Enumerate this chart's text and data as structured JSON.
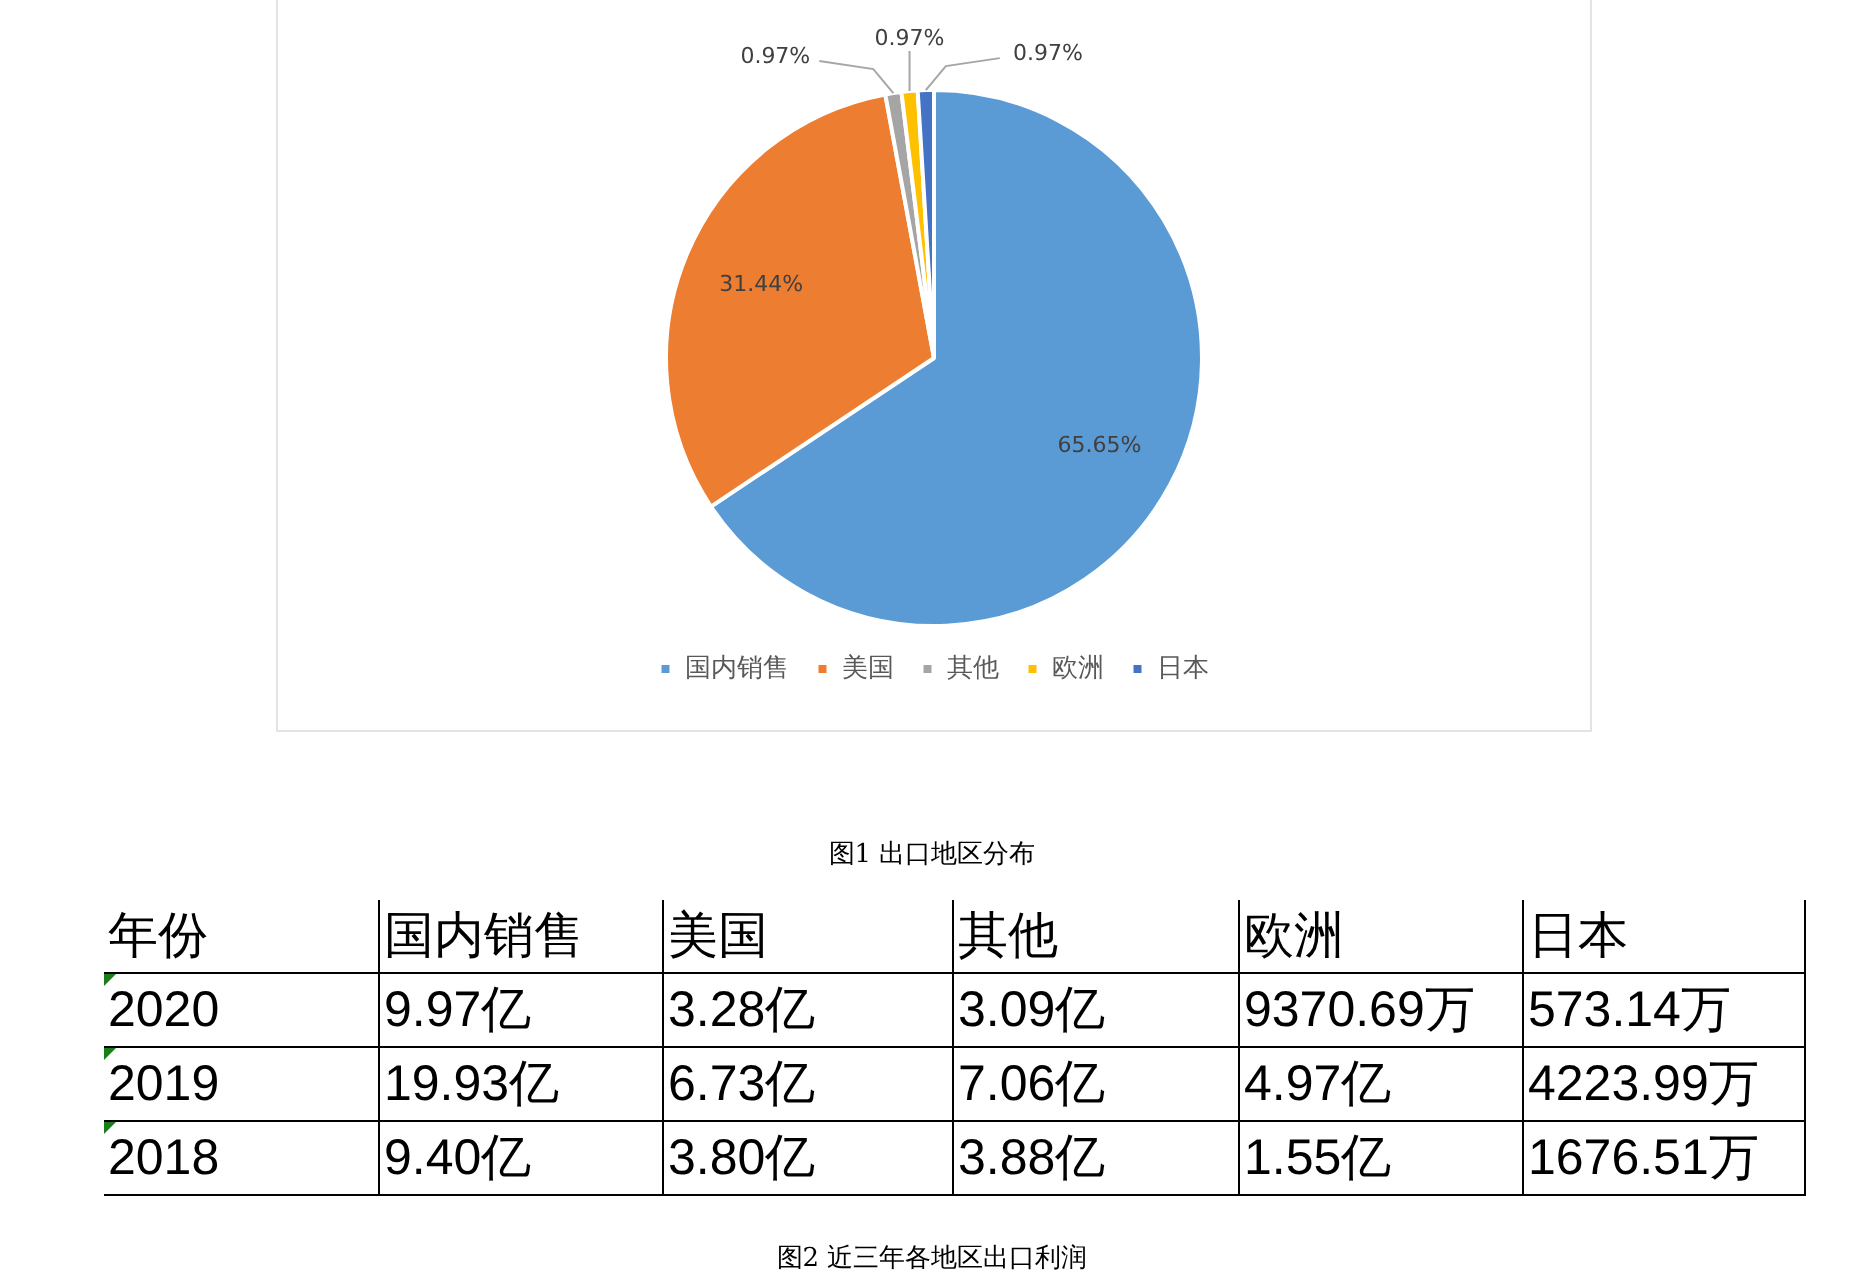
{
  "chart_data": [
    {
      "type": "pie",
      "categories": [
        "国内销售",
        "美国",
        "其他",
        "欧洲",
        "日本"
      ],
      "values": [
        65.65,
        31.44,
        0.97,
        0.97,
        0.97
      ],
      "colors": [
        "#5b9bd5",
        "#ed7d31",
        "#a5a5a5",
        "#ffc000",
        "#4472c4"
      ],
      "value_labels": [
        "65.65%",
        "31.44%",
        "0.97%",
        "0.97%",
        "0.97%"
      ],
      "legend": "bottom",
      "annotations": [
        "图1 出口地区分布"
      ]
    },
    {
      "type": "heatmap",
      "ylabel": "年份",
      "categories": [
        "国内销售",
        "美国",
        "其他",
        "欧洲",
        "日本"
      ],
      "y_categories": [
        "2020",
        "2019",
        "2018"
      ],
      "cells": [
        [
          "9.97亿",
          "3.28亿",
          "3.09亿",
          "9370.69万",
          "573.14万"
        ],
        [
          "19.93亿",
          "6.73亿",
          "7.06亿",
          "4.97亿",
          "4223.99万"
        ],
        [
          "9.40亿",
          "3.80亿",
          "3.88亿",
          "1.55亿",
          "1676.51万"
        ]
      ],
      "annotations": [
        "图2 近三年各地区出口利润"
      ]
    }
  ]
}
